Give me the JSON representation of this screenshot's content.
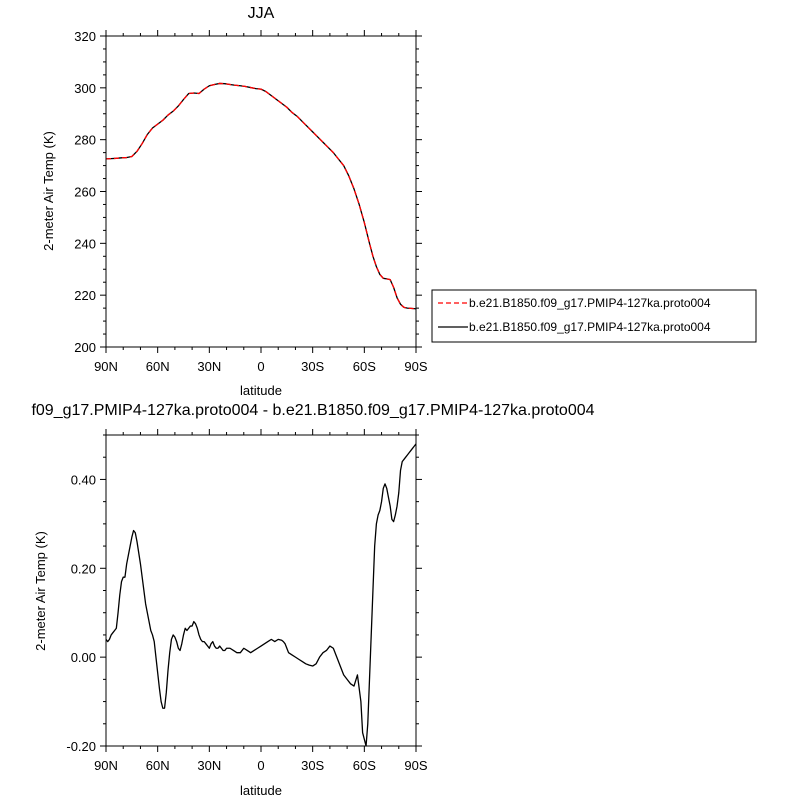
{
  "chart_data": [
    {
      "type": "line",
      "title": "JJA",
      "xlabel": "latitude",
      "ylabel": "2-meter Air Temp (K)",
      "xlim": [
        90,
        -90
      ],
      "ylim": [
        200,
        320
      ],
      "xticks": [
        {
          "value": 90,
          "label": "90N"
        },
        {
          "value": 60,
          "label": "60N"
        },
        {
          "value": 30,
          "label": "30N"
        },
        {
          "value": 0,
          "label": "0"
        },
        {
          "value": -30,
          "label": "30S"
        },
        {
          "value": -60,
          "label": "60S"
        },
        {
          "value": -90,
          "label": "90S"
        }
      ],
      "yticks": [
        {
          "value": 200,
          "label": "200"
        },
        {
          "value": 220,
          "label": "220"
        },
        {
          "value": 240,
          "label": "240"
        },
        {
          "value": 260,
          "label": "260"
        },
        {
          "value": 280,
          "label": "280"
        },
        {
          "value": 300,
          "label": "300"
        },
        {
          "value": 320,
          "label": "320"
        }
      ],
      "legend": {
        "placement": "right"
      },
      "series": [
        {
          "name": "b.e21.B1850.f09_g17.PMIP4-127ka.proto004",
          "color": "#ff0000",
          "dash": "dashed",
          "x": [
            90,
            87,
            84,
            81,
            78,
            75,
            72,
            69,
            66,
            63,
            60,
            57,
            54,
            51,
            48,
            45,
            42,
            39,
            36,
            33,
            30,
            27,
            24,
            21,
            18,
            15,
            12,
            9,
            6,
            3,
            0,
            -3,
            -6,
            -9,
            -12,
            -15,
            -18,
            -21,
            -24,
            -27,
            -30,
            -33,
            -36,
            -39,
            -42,
            -45,
            -48,
            -51,
            -54,
            -57,
            -60,
            -63,
            -65,
            -67,
            -69,
            -71,
            -73,
            -75,
            -77,
            -79,
            -81,
            -83,
            -85,
            -87,
            -89,
            -90
          ],
          "y": [
            272.6,
            272.7,
            272.8,
            273.0,
            273.1,
            273.5,
            275.5,
            278.5,
            282.0,
            284.5,
            286.0,
            287.5,
            289.5,
            291.0,
            293.0,
            295.5,
            297.8,
            298.0,
            297.8,
            299.5,
            300.8,
            301.3,
            301.7,
            301.6,
            301.3,
            301.0,
            300.8,
            300.5,
            300.1,
            299.7,
            299.5,
            298.5,
            297.0,
            295.5,
            294.0,
            292.5,
            290.5,
            289.0,
            287.0,
            285.0,
            283.0,
            281.0,
            279.0,
            277.0,
            275.0,
            272.5,
            270.0,
            266.0,
            261.0,
            255.0,
            248.0,
            240.0,
            235.0,
            231.0,
            228.0,
            226.5,
            226.3,
            226.0,
            223.0,
            219.0,
            216.5,
            215.3,
            215.0,
            214.9,
            214.8,
            214.7
          ]
        },
        {
          "name": "b.e21.B1850.f09_g17.PMIP4-127ka.proto004",
          "color": "#000000",
          "dash": "solid",
          "x": [
            90,
            87,
            84,
            81,
            78,
            75,
            72,
            69,
            66,
            63,
            60,
            57,
            54,
            51,
            48,
            45,
            42,
            39,
            36,
            33,
            30,
            27,
            24,
            21,
            18,
            15,
            12,
            9,
            6,
            3,
            0,
            -3,
            -6,
            -9,
            -12,
            -15,
            -18,
            -21,
            -24,
            -27,
            -30,
            -33,
            -36,
            -39,
            -42,
            -45,
            -48,
            -51,
            -54,
            -57,
            -60,
            -63,
            -65,
            -67,
            -69,
            -71,
            -73,
            -75,
            -77,
            -79,
            -81,
            -83,
            -85,
            -87,
            -89,
            -90
          ],
          "y": [
            272.6,
            272.7,
            272.8,
            273.0,
            273.1,
            273.5,
            275.5,
            278.5,
            282.0,
            284.5,
            286.0,
            287.5,
            289.5,
            291.0,
            293.0,
            295.5,
            297.8,
            298.0,
            297.8,
            299.5,
            300.8,
            301.3,
            301.7,
            301.6,
            301.3,
            301.0,
            300.8,
            300.5,
            300.1,
            299.7,
            299.5,
            298.5,
            297.0,
            295.5,
            294.0,
            292.5,
            290.5,
            289.0,
            287.0,
            285.0,
            283.0,
            281.0,
            279.0,
            277.0,
            275.0,
            272.5,
            270.0,
            266.0,
            261.0,
            255.0,
            248.0,
            240.0,
            235.0,
            231.0,
            228.0,
            226.5,
            226.3,
            226.0,
            223.0,
            219.0,
            216.5,
            215.3,
            215.0,
            214.9,
            214.8,
            214.7
          ]
        }
      ]
    },
    {
      "type": "line",
      "title": "f09_g17.PMIP4-127ka.proto004 - b.e21.B1850.f09_g17.PMIP4-127ka.proto004",
      "xlabel": "latitude",
      "ylabel": "2-meter Air Temp (K)",
      "xlim": [
        90,
        -90
      ],
      "ylim": [
        -0.2,
        0.5
      ],
      "xticks": [
        {
          "value": 90,
          "label": "90N"
        },
        {
          "value": 60,
          "label": "60N"
        },
        {
          "value": 30,
          "label": "30N"
        },
        {
          "value": 0,
          "label": "0"
        },
        {
          "value": -30,
          "label": "30S"
        },
        {
          "value": -60,
          "label": "60S"
        },
        {
          "value": -90,
          "label": "90S"
        }
      ],
      "yticks": [
        {
          "value": -0.2,
          "label": "-0.20"
        },
        {
          "value": 0.0,
          "label": "0.00"
        },
        {
          "value": 0.2,
          "label": "0.20"
        },
        {
          "value": 0.4,
          "label": "0.40"
        }
      ],
      "series": [
        {
          "color": "#000000",
          "dash": "solid",
          "x": [
            90,
            89,
            88,
            87,
            86,
            85,
            84,
            83,
            82,
            81,
            80,
            79,
            78,
            77,
            76,
            75,
            74,
            73,
            72,
            71,
            70,
            69,
            68,
            67,
            66,
            65,
            64,
            63,
            62,
            61,
            60,
            59,
            58,
            57,
            56,
            55,
            54,
            53,
            52,
            51,
            50,
            49,
            48,
            47,
            46,
            45,
            44,
            43,
            42,
            41,
            40,
            39,
            38,
            37,
            36,
            35,
            34,
            33,
            32,
            31,
            30,
            29,
            28,
            27,
            26,
            25,
            24,
            23,
            22,
            21,
            20,
            18,
            16,
            14,
            12,
            10,
            8,
            6,
            4,
            2,
            0,
            -2,
            -4,
            -6,
            -8,
            -10,
            -12,
            -13,
            -14,
            -15,
            -16,
            -18,
            -20,
            -22,
            -24,
            -26,
            -28,
            -30,
            -32,
            -34,
            -36,
            -38,
            -40,
            -42,
            -44,
            -46,
            -48,
            -50,
            -52,
            -54,
            -56,
            -58,
            -59,
            -60,
            -61,
            -62,
            -63,
            -64,
            -65,
            -66,
            -67,
            -68,
            -69,
            -70,
            -71,
            -72,
            -73,
            -74,
            -75,
            -76,
            -77,
            -78,
            -79,
            -80,
            -81,
            -82,
            -83,
            -84,
            -85,
            -86,
            -87,
            -88,
            -89,
            -90
          ],
          "y": [
            0.04,
            0.035,
            0.04,
            0.05,
            0.055,
            0.06,
            0.065,
            0.1,
            0.14,
            0.17,
            0.18,
            0.18,
            0.21,
            0.23,
            0.25,
            0.27,
            0.285,
            0.28,
            0.26,
            0.235,
            0.21,
            0.18,
            0.15,
            0.12,
            0.1,
            0.08,
            0.06,
            0.05,
            0.035,
            0.0,
            -0.035,
            -0.07,
            -0.1,
            -0.115,
            -0.115,
            -0.08,
            -0.03,
            0.01,
            0.04,
            0.05,
            0.045,
            0.035,
            0.02,
            0.015,
            0.03,
            0.05,
            0.065,
            0.06,
            0.065,
            0.07,
            0.07,
            0.08,
            0.075,
            0.065,
            0.05,
            0.04,
            0.035,
            0.035,
            0.03,
            0.025,
            0.02,
            0.03,
            0.035,
            0.025,
            0.02,
            0.02,
            0.025,
            0.02,
            0.015,
            0.015,
            0.02,
            0.02,
            0.015,
            0.01,
            0.01,
            0.02,
            0.015,
            0.01,
            0.015,
            0.02,
            0.025,
            0.03,
            0.035,
            0.04,
            0.035,
            0.04,
            0.038,
            0.035,
            0.03,
            0.02,
            0.01,
            0.005,
            0.0,
            -0.005,
            -0.01,
            -0.015,
            -0.018,
            -0.02,
            -0.015,
            0.0,
            0.01,
            0.015,
            0.025,
            0.02,
            0.0,
            -0.02,
            -0.04,
            -0.05,
            -0.06,
            -0.065,
            -0.04,
            -0.1,
            -0.17,
            -0.185,
            -0.2,
            -0.15,
            -0.05,
            0.05,
            0.15,
            0.25,
            0.3,
            0.32,
            0.33,
            0.35,
            0.38,
            0.39,
            0.38,
            0.36,
            0.34,
            0.31,
            0.305,
            0.32,
            0.34,
            0.37,
            0.42,
            0.44,
            0.445,
            0.45,
            0.455,
            0.46,
            0.465,
            0.47,
            0.475,
            0.48
          ]
        }
      ]
    }
  ]
}
